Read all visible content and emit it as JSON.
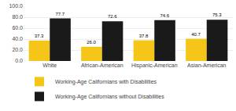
{
  "chart_data": {
    "type": "bar",
    "categories": [
      "White",
      "African-American",
      "Hispanic-American",
      "Asian-American"
    ],
    "series": [
      {
        "name": "Working-Age Californians with Disabilities",
        "color": "#F5C518",
        "values": [
          37.3,
          26.0,
          37.8,
          40.7
        ],
        "value_labels": [
          "37.3",
          "26.0",
          "37.8",
          "40.7"
        ]
      },
      {
        "name": "Working-Age Californians without Disabilities",
        "color": "#1a1a1a",
        "values": [
          77.7,
          72.6,
          74.6,
          75.3
        ],
        "value_labels": [
          "77.7",
          "72.6",
          "74.6",
          "75.3"
        ]
      }
    ],
    "ylim": [
      0,
      100
    ],
    "yticks": [
      {
        "value": 0,
        "label": "0.0"
      },
      {
        "value": 20,
        "label": "20.0"
      },
      {
        "value": 40,
        "label": "40.0"
      },
      {
        "value": 60,
        "label": "60.0"
      },
      {
        "value": 80,
        "label": "80.0"
      },
      {
        "value": 100,
        "label": "100.0"
      }
    ],
    "grid": true,
    "data_labels": true,
    "legend": "lower left"
  }
}
